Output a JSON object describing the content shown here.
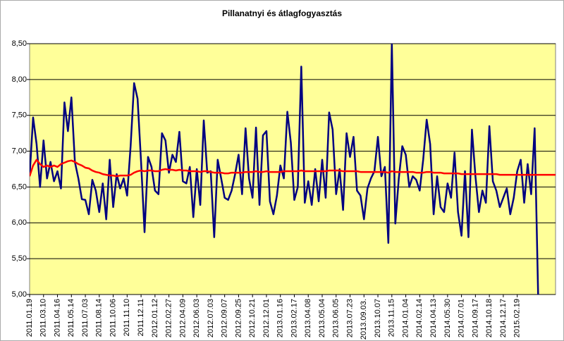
{
  "chart_data": {
    "type": "line",
    "title": "Pillanatnyi és átlagfogyasztás",
    "categories": [
      "2011.01.19",
      null,
      null,
      null,
      "2011.03.10",
      null,
      null,
      null,
      "2011.04.16",
      null,
      null,
      null,
      "2011.05.14",
      null,
      null,
      null,
      "2011.07.03",
      null,
      null,
      null,
      "2011.08.14",
      null,
      null,
      null,
      "2011.10.06",
      null,
      null,
      null,
      "2011.11.10",
      null,
      null,
      null,
      "2011.12.11",
      null,
      null,
      null,
      "2012.01.12",
      null,
      null,
      null,
      "2012.02.27",
      null,
      null,
      null,
      "2012.04.09",
      null,
      null,
      null,
      "2012.06.03",
      null,
      null,
      null,
      "2012.07.03",
      null,
      null,
      null,
      "2012.09.07",
      null,
      null,
      null,
      "2012.09.25",
      null,
      null,
      null,
      "2012.10.21",
      null,
      null,
      null,
      "2012.12.01",
      null,
      null,
      null,
      "2013.01.16",
      null,
      null,
      null,
      "2013.02.17",
      null,
      null,
      null,
      "2013.04.08",
      null,
      null,
      null,
      "2013.05.04",
      null,
      null,
      null,
      "2013.06.05",
      null,
      null,
      null,
      "2013.07.23",
      null,
      null,
      null,
      "2013.09.03.",
      null,
      null,
      null,
      "2013.10.07",
      null,
      null,
      null,
      "2013.11.15",
      null,
      null,
      null,
      "2014.01.04",
      null,
      null,
      null,
      "2014.02.14",
      null,
      null,
      null,
      "2014.04.13",
      null,
      null,
      null,
      "2014.05.30",
      null,
      null,
      null,
      "2014.07.01",
      null,
      null,
      null,
      "2014.09.17",
      null,
      null,
      null,
      "2014.10.18",
      null,
      null,
      null,
      "2014.12.17",
      null,
      null,
      null,
      "2015.02.19",
      null,
      null,
      null,
      null,
      null,
      null,
      null,
      null,
      null,
      null,
      null
    ],
    "series": [
      {
        "color": "#000080",
        "values": [
          6.65,
          7.47,
          7.1,
          6.5,
          7.15,
          6.62,
          6.85,
          6.58,
          6.72,
          6.48,
          7.68,
          7.28,
          7.75,
          6.85,
          6.62,
          6.33,
          6.32,
          6.12,
          6.6,
          6.45,
          6.15,
          6.55,
          6.05,
          6.88,
          6.22,
          6.68,
          6.48,
          6.62,
          6.38,
          7.07,
          7.95,
          7.73,
          6.85,
          5.87,
          6.92,
          6.78,
          6.45,
          6.4,
          7.25,
          7.15,
          6.7,
          6.95,
          6.85,
          7.27,
          6.58,
          6.55,
          6.78,
          6.08,
          6.75,
          6.25,
          7.43,
          6.7,
          6.72,
          5.8,
          6.88,
          6.62,
          6.35,
          6.32,
          6.45,
          6.68,
          6.95,
          6.4,
          7.32,
          6.62,
          6.35,
          7.33,
          6.25,
          7.22,
          7.28,
          6.3,
          6.12,
          6.38,
          6.8,
          6.62,
          7.55,
          7.12,
          6.32,
          6.5,
          8.18,
          6.28,
          6.58,
          6.25,
          6.75,
          6.3,
          6.88,
          6.35,
          7.54,
          7.3,
          6.4,
          6.75,
          6.18,
          7.25,
          6.92,
          7.2,
          6.45,
          6.38,
          6.05,
          6.48,
          6.62,
          6.72,
          7.2,
          6.65,
          6.78,
          5.72,
          8.5,
          5.99,
          6.62,
          7.07,
          6.95,
          6.5,
          6.65,
          6.6,
          6.45,
          6.88,
          7.44,
          7.1,
          6.12,
          6.65,
          6.22,
          6.15,
          6.55,
          6.35,
          6.98,
          6.15,
          5.82,
          6.72,
          5.8,
          7.3,
          6.65,
          6.15,
          6.45,
          6.28,
          7.35,
          6.58,
          6.45,
          6.22,
          6.35,
          6.48,
          6.12,
          6.35,
          6.72,
          6.88,
          6.28,
          6.82,
          6.4,
          7.32,
          5.0,
          null,
          null,
          null,
          null,
          null
        ]
      },
      {
        "color": "#ff0000",
        "values": [
          6.65,
          6.8,
          6.88,
          6.82,
          6.78,
          6.8,
          6.78,
          6.8,
          6.78,
          6.82,
          6.84,
          6.86,
          6.87,
          6.85,
          6.82,
          6.8,
          6.77,
          6.76,
          6.73,
          6.71,
          6.7,
          6.68,
          6.67,
          6.66,
          6.66,
          6.65,
          6.66,
          6.66,
          6.66,
          6.67,
          6.7,
          6.72,
          6.73,
          6.72,
          6.73,
          6.73,
          6.72,
          6.72,
          6.74,
          6.75,
          6.74,
          6.74,
          6.73,
          6.74,
          6.73,
          6.73,
          6.72,
          6.72,
          6.72,
          6.71,
          6.72,
          6.72,
          6.71,
          6.7,
          6.7,
          6.7,
          6.69,
          6.69,
          6.7,
          6.7,
          6.7,
          6.7,
          6.71,
          6.71,
          6.71,
          6.72,
          6.71,
          6.71,
          6.72,
          6.71,
          6.71,
          6.71,
          6.71,
          6.72,
          6.72,
          6.72,
          6.72,
          6.72,
          6.73,
          6.72,
          6.72,
          6.72,
          6.72,
          6.72,
          6.72,
          6.72,
          6.73,
          6.73,
          6.73,
          6.73,
          6.72,
          6.72,
          6.72,
          6.72,
          6.72,
          6.71,
          6.71,
          6.71,
          6.71,
          6.71,
          6.71,
          6.71,
          6.71,
          6.7,
          6.72,
          6.71,
          6.71,
          6.71,
          6.71,
          6.71,
          6.71,
          6.7,
          6.7,
          6.7,
          6.71,
          6.71,
          6.7,
          6.7,
          6.7,
          6.69,
          6.69,
          6.69,
          6.69,
          6.69,
          6.68,
          6.68,
          6.68,
          6.68,
          6.68,
          6.68,
          6.68,
          6.68,
          6.68,
          6.68,
          6.68,
          6.67,
          6.67,
          6.67,
          6.67,
          6.67,
          6.67,
          6.67,
          6.67,
          6.67,
          6.67,
          6.67,
          6.67,
          6.67,
          6.67,
          6.67,
          6.67,
          6.67
        ]
      }
    ],
    "ylim": [
      5,
      8.5
    ],
    "yticks": [
      {
        "value": 5,
        "label": "5,00"
      },
      {
        "value": 5.5,
        "label": "5,50"
      },
      {
        "value": 6,
        "label": "6,00"
      },
      {
        "value": 6.5,
        "label": "6,50"
      },
      {
        "value": 7,
        "label": "7,00"
      },
      {
        "value": 7.5,
        "label": "7,50"
      },
      {
        "value": 8,
        "label": "8,00"
      },
      {
        "value": 8.5,
        "label": "8,50"
      }
    ],
    "grid": true,
    "background": "#ffff99"
  }
}
